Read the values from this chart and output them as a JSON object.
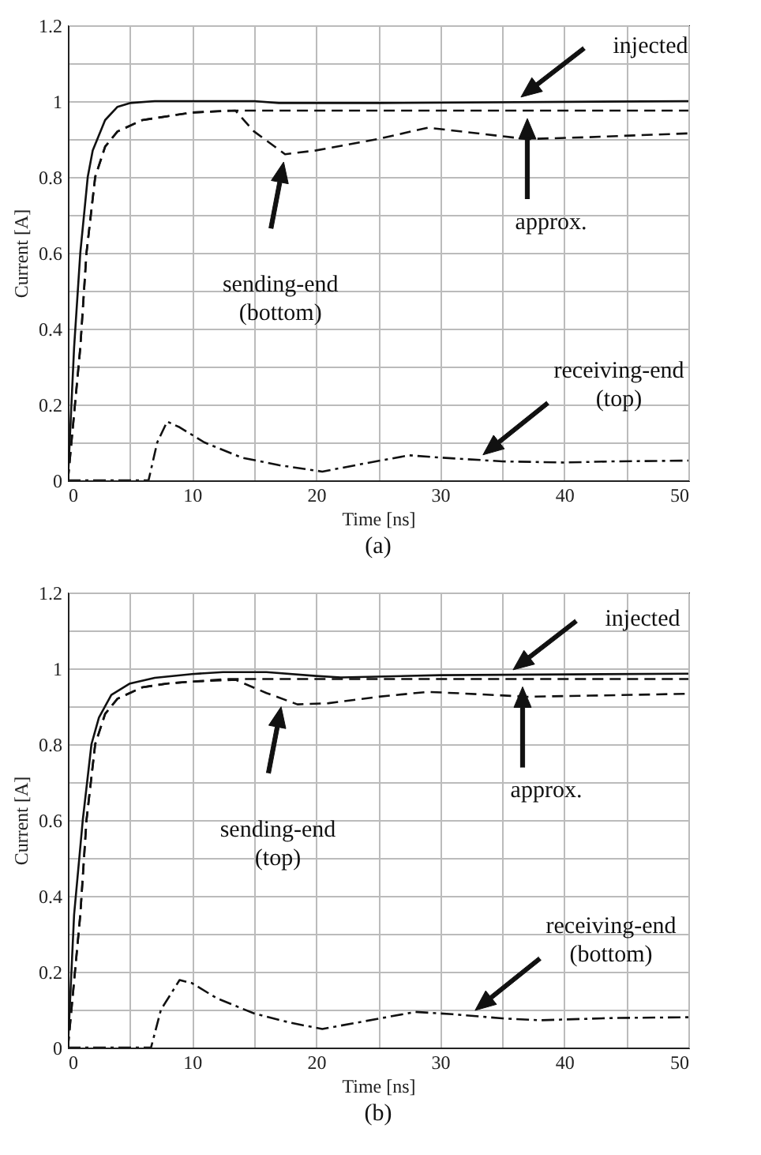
{
  "chart_data": [
    {
      "type": "line",
      "title": "(a)",
      "xlabel": "Time [ns]",
      "ylabel": "Current [A]",
      "xlim": [
        0,
        50
      ],
      "ylim": [
        0,
        1.2
      ],
      "grid": true,
      "xticks": [
        0,
        {
          "value": 5,
          "label": null
        },
        10,
        {
          "value": 15,
          "label": null
        },
        20,
        {
          "value": 25,
          "label": null
        },
        30,
        {
          "value": 35,
          "label": null
        },
        40,
        {
          "value": 45,
          "label": null
        },
        50
      ],
      "yticks": [
        0,
        {
          "value": 0.1,
          "label": null
        },
        0.2,
        {
          "value": 0.3,
          "label": null
        },
        0.4,
        {
          "value": 0.5,
          "label": null
        },
        0.6,
        {
          "value": 0.7,
          "label": null
        },
        0.8,
        {
          "value": 0.9,
          "label": null
        },
        1,
        {
          "value": 1.1,
          "label": null
        },
        1.2
      ],
      "series": [
        {
          "color": "#111111",
          "line_style": "solid",
          "x": [
            0,
            0.5,
            1,
            1.6,
            2,
            3,
            4,
            5,
            7,
            15,
            17,
            25,
            50
          ],
          "values": [
            0,
            0.35,
            0.6,
            0.8,
            0.87,
            0.95,
            0.985,
            0.995,
            1.0,
            1.0,
            0.995,
            0.995,
            1.0
          ]
        },
        {
          "color": "#111111",
          "line_style": "dashed",
          "x": [
            0,
            1,
            1.5,
            2.2,
            3,
            4,
            6,
            8,
            10,
            13,
            50
          ],
          "values": [
            0,
            0.35,
            0.6,
            0.8,
            0.88,
            0.92,
            0.95,
            0.96,
            0.97,
            0.975,
            0.975
          ]
        },
        {
          "color": "#111111",
          "line_style": "dashed",
          "x": [
            0,
            1,
            1.5,
            2.2,
            3,
            4,
            6,
            8,
            10,
            13.5,
            15,
            17.5,
            20,
            25,
            29,
            33,
            37,
            42,
            50
          ],
          "values": [
            0,
            0.35,
            0.6,
            0.8,
            0.88,
            0.92,
            0.95,
            0.96,
            0.97,
            0.975,
            0.92,
            0.86,
            0.87,
            0.9,
            0.93,
            0.915,
            0.9,
            0.905,
            0.915
          ]
        },
        {
          "color": "#111111",
          "line_style": "dashdot",
          "x": [
            0,
            6.5,
            7.2,
            8,
            9,
            11,
            14,
            17,
            20.5,
            24,
            27.5,
            30,
            35,
            40,
            44,
            50
          ],
          "values": [
            0,
            0,
            0.1,
            0.155,
            0.14,
            0.1,
            0.06,
            0.04,
            0.023,
            0.045,
            0.066,
            0.06,
            0.05,
            0.047,
            0.05,
            0.052
          ]
        }
      ],
      "annotations": [
        "injected",
        "approx.",
        "sending-end\n(bottom)",
        "receiving-end\n(top)"
      ]
    },
    {
      "type": "line",
      "title": "(b)",
      "xlabel": "Time [ns]",
      "ylabel": "Current [A]",
      "xlim": [
        0,
        50
      ],
      "ylim": [
        0,
        1.2
      ],
      "grid": true,
      "xticks": [
        0,
        {
          "value": 5,
          "label": null
        },
        10,
        {
          "value": 15,
          "label": null
        },
        20,
        {
          "value": 25,
          "label": null
        },
        30,
        {
          "value": 35,
          "label": null
        },
        40,
        {
          "value": 45,
          "label": null
        },
        50
      ],
      "yticks": [
        0,
        {
          "value": 0.1,
          "label": null
        },
        0.2,
        {
          "value": 0.3,
          "label": null
        },
        0.4,
        {
          "value": 0.5,
          "label": null
        },
        0.6,
        {
          "value": 0.7,
          "label": null
        },
        0.8,
        {
          "value": 0.9,
          "label": null
        },
        1,
        {
          "value": 1.1,
          "label": null
        },
        1.2
      ],
      "series": [
        {
          "color": "#111111",
          "line_style": "solid",
          "x": [
            0,
            0.5,
            1.2,
            1.9,
            2.5,
            3.5,
            5,
            7,
            10,
            12.5,
            16,
            20,
            22,
            30,
            50
          ],
          "values": [
            0,
            0.35,
            0.6,
            0.8,
            0.87,
            0.93,
            0.96,
            0.975,
            0.985,
            0.99,
            0.99,
            0.98,
            0.976,
            0.982,
            0.986
          ]
        },
        {
          "color": "#111111",
          "line_style": "dashed",
          "x": [
            0,
            1,
            1.5,
            2.2,
            3,
            4,
            6,
            8,
            10,
            13,
            50
          ],
          "values": [
            0,
            0.35,
            0.6,
            0.8,
            0.88,
            0.92,
            0.95,
            0.96,
            0.965,
            0.972,
            0.972
          ]
        },
        {
          "color": "#111111",
          "line_style": "dashed",
          "x": [
            0,
            1,
            1.5,
            2.2,
            3,
            4,
            6,
            8,
            10,
            13.5,
            16,
            18.5,
            21,
            25,
            29,
            33,
            37,
            42,
            50
          ],
          "values": [
            0,
            0.35,
            0.6,
            0.8,
            0.88,
            0.92,
            0.95,
            0.96,
            0.965,
            0.97,
            0.935,
            0.905,
            0.908,
            0.925,
            0.938,
            0.932,
            0.925,
            0.928,
            0.933
          ]
        },
        {
          "color": "#111111",
          "line_style": "dashdot",
          "x": [
            0,
            6.7,
            7.5,
            9,
            10,
            12,
            15,
            18,
            20.5,
            24,
            28,
            31,
            35,
            38,
            44,
            50
          ],
          "values": [
            0,
            0,
            0.1,
            0.178,
            0.17,
            0.13,
            0.09,
            0.065,
            0.049,
            0.07,
            0.094,
            0.088,
            0.077,
            0.072,
            0.078,
            0.08
          ]
        }
      ],
      "annotations": [
        "injected",
        "approx.",
        "sending-end\n(top)",
        "receiving-end\n(bottom)"
      ]
    }
  ]
}
